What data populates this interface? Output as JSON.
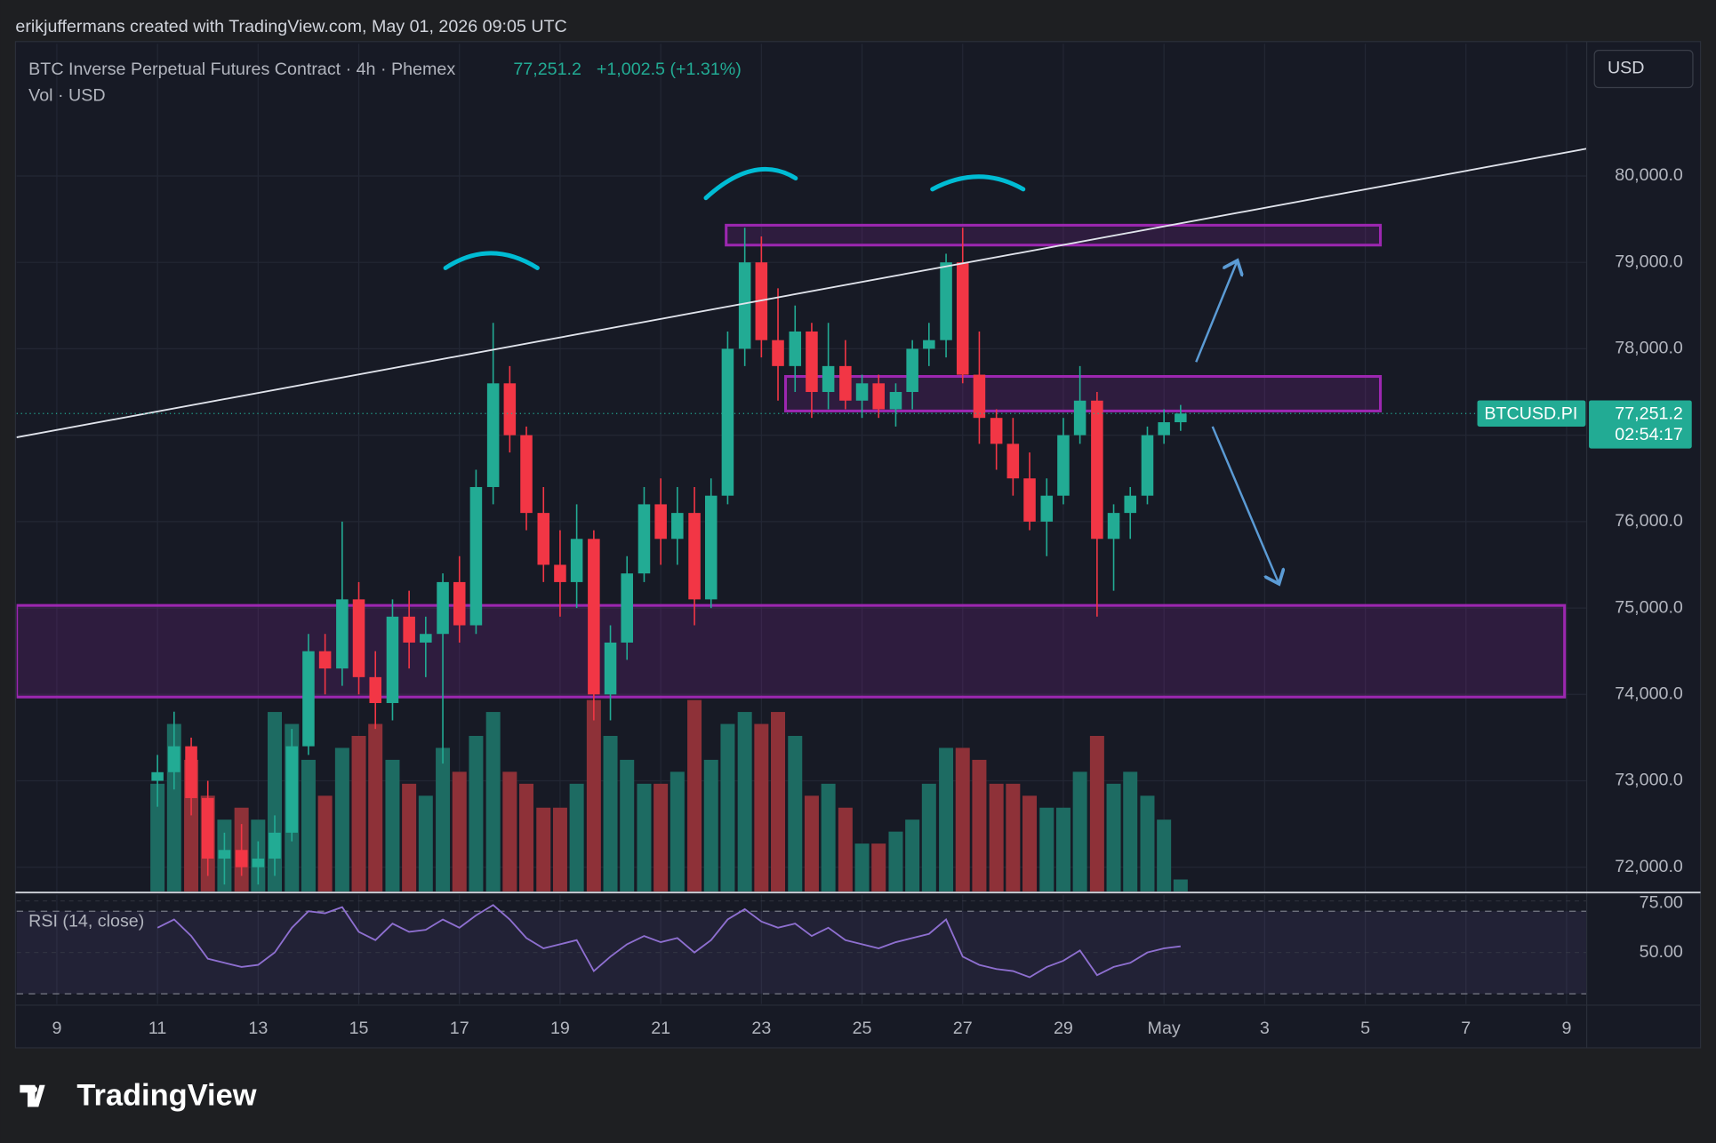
{
  "header": {
    "attribution": "erikjuffermans created with TradingView.com, May 01, 2026 09:05 UTC",
    "symbol": "BTC Inverse Perpetual Futures Contract · 4h · Phemex",
    "change": "+1,002.5 (+1.31%)",
    "volume_label": "Vol · USD",
    "currency": "USD",
    "brand": "TradingView"
  },
  "chart_data": {
    "type": "candlestick",
    "x": [
      11,
      11.33,
      11.67,
      12,
      12.33,
      12.67,
      13,
      13.33,
      13.67,
      14,
      14.33,
      14.67,
      15,
      15.33,
      15.67,
      16,
      16.33,
      16.67,
      17,
      17.33,
      17.67,
      18,
      18.33,
      18.67,
      19,
      19.33,
      19.67,
      20,
      20.33,
      20.67,
      21,
      21.33,
      21.67,
      22,
      22.33,
      22.67,
      23,
      23.33,
      23.67,
      24,
      24.33,
      24.67,
      25,
      25.33,
      25.67,
      26,
      26.33,
      26.67,
      27,
      27.33,
      27.67,
      28,
      28.33,
      28.67,
      29,
      29.33,
      29.67,
      30,
      30.33,
      30.67,
      31,
      31.33
    ],
    "open": [
      73000,
      73100,
      73400,
      72800,
      72100,
      72200,
      72000,
      72100,
      72400,
      73400,
      74500,
      74300,
      75100,
      74200,
      73900,
      74900,
      74600,
      74700,
      75300,
      74800,
      76400,
      77600,
      77000,
      76100,
      75500,
      75300,
      75800,
      74000,
      74600,
      75400,
      76200,
      75800,
      76100,
      75100,
      76300,
      78000,
      79000,
      78100,
      77800,
      78200,
      77500,
      77800,
      77400,
      77600,
      77300,
      77500,
      78000,
      78100,
      79000,
      77700,
      77200,
      76900,
      76500,
      76000,
      76300,
      77000,
      77400,
      75800,
      76100,
      76300,
      77000,
      77150
    ],
    "high": [
      73300,
      73800,
      73500,
      73000,
      72400,
      72500,
      72300,
      72600,
      73600,
      74700,
      74700,
      76000,
      75300,
      74500,
      75100,
      75200,
      74900,
      75400,
      75600,
      76600,
      78300,
      77800,
      77100,
      76400,
      75900,
      76200,
      75900,
      74800,
      75600,
      76400,
      76500,
      76400,
      76400,
      76500,
      78200,
      79400,
      79300,
      78700,
      78500,
      78300,
      78300,
      78100,
      77700,
      77700,
      77600,
      78100,
      78300,
      79100,
      79400,
      78200,
      77300,
      77200,
      76800,
      76500,
      77200,
      77800,
      77500,
      76200,
      76400,
      77100,
      77300,
      77350
    ],
    "low": [
      72700,
      72900,
      72600,
      71900,
      71800,
      71900,
      71800,
      71900,
      72300,
      73300,
      74000,
      74100,
      74000,
      73600,
      73700,
      74300,
      74200,
      73200,
      74600,
      74700,
      76200,
      76800,
      75900,
      75300,
      74900,
      75000,
      73700,
      73700,
      74400,
      75300,
      75500,
      75500,
      74800,
      75000,
      76200,
      77800,
      77900,
      77400,
      77500,
      77200,
      77300,
      77300,
      77200,
      77200,
      77100,
      77300,
      77800,
      77900,
      77600,
      76900,
      76600,
      76300,
      75900,
      75600,
      76200,
      76900,
      74900,
      75200,
      75800,
      76200,
      76900,
      77050
    ],
    "close": [
      73100,
      73400,
      72800,
      72100,
      72200,
      72000,
      72100,
      72400,
      73400,
      74500,
      74300,
      75100,
      74200,
      73900,
      74900,
      74600,
      74700,
      75300,
      74800,
      76400,
      77600,
      77000,
      76100,
      75500,
      75300,
      75800,
      74000,
      74600,
      75400,
      76200,
      75800,
      76100,
      75100,
      76300,
      78000,
      79000,
      78100,
      77800,
      78200,
      77500,
      77800,
      77400,
      77600,
      77300,
      77500,
      78000,
      78100,
      79000,
      77700,
      77200,
      76900,
      76500,
      76000,
      76300,
      77000,
      77400,
      75800,
      76100,
      76300,
      77000,
      77150,
      77251.2
    ],
    "volume": [
      45,
      70,
      55,
      40,
      30,
      35,
      30,
      75,
      70,
      55,
      40,
      60,
      65,
      70,
      55,
      45,
      40,
      60,
      50,
      65,
      75,
      50,
      45,
      35,
      35,
      45,
      80,
      65,
      55,
      45,
      45,
      50,
      80,
      55,
      70,
      75,
      70,
      75,
      65,
      40,
      45,
      35,
      20,
      20,
      25,
      30,
      45,
      60,
      60,
      55,
      45,
      45,
      40,
      35,
      35,
      50,
      65,
      45,
      50,
      40,
      30,
      5
    ],
    "up_color": "#22ab94",
    "down_color": "#f23645",
    "up_volume_color": "#1d6b62",
    "down_volume_color": "#8e3138",
    "xlim": [
      8.2,
      39.4
    ],
    "xticks": [
      9,
      11,
      13,
      15,
      17,
      19,
      21,
      23,
      25,
      27,
      29,
      {
        "value": 31,
        "label": "May"
      },
      {
        "value": 33,
        "label": "3"
      },
      {
        "value": 35,
        "label": "5"
      },
      {
        "value": 37,
        "label": "7"
      },
      {
        "value": 39,
        "label": "9"
      }
    ],
    "ylim": [
      71720,
      81530
    ],
    "yticks": [
      {
        "value": 72000,
        "label": "72,000.0"
      },
      {
        "value": 73000,
        "label": "73,000.0"
      },
      {
        "value": 74000,
        "label": "74,000.0"
      },
      {
        "value": 75000,
        "label": "75,000.0"
      },
      {
        "value": 76000,
        "label": "76,000.0"
      },
      {
        "value": 77000,
        "label": "77,000.0"
      },
      {
        "value": 78000,
        "label": "78,000.0"
      },
      {
        "value": 79000,
        "label": "79,000.0"
      },
      {
        "value": 80000,
        "label": "80,000.0"
      }
    ],
    "grid": true,
    "last": {
      "value": 77251.2,
      "label": "77,251.2"
    },
    "symbol_tag": "BTCUSD.PI",
    "countdown": "02:54:17",
    "zones": [
      {
        "start": 22.3,
        "end": 35.3,
        "from": 79200,
        "to": 79430
      },
      {
        "start": 23.48,
        "end": 35.3,
        "from": 77280,
        "to": 77680
      },
      {
        "start": 8.2,
        "end": 38.96,
        "from": 73970,
        "to": 75030
      }
    ],
    "zone_color": "#9c27b0",
    "trendline": {
      "x": [
        8.2,
        39.4
      ],
      "y": [
        76975,
        80316
      ],
      "color": "#e0e3eb"
    },
    "rsi": {
      "name": "RSI (14, close)",
      "color": "#8e6fd0",
      "values": [
        62,
        66,
        58,
        47,
        45,
        43,
        44,
        50,
        62,
        70,
        69,
        72,
        60,
        56,
        64,
        60,
        61,
        66,
        62,
        68,
        73,
        66,
        57,
        52,
        54,
        56,
        41,
        48,
        54,
        58,
        55,
        57,
        50,
        56,
        66,
        71,
        65,
        62,
        64,
        58,
        62,
        56,
        54,
        52,
        55,
        57,
        59,
        66,
        48,
        44,
        42,
        41,
        38,
        43,
        46,
        51,
        39,
        43,
        45,
        50,
        52,
        53
      ],
      "ylim": [
        25,
        78
      ],
      "yticks": [
        {
          "value": 75,
          "label": "75.00"
        },
        {
          "value": 50,
          "label": "50.00"
        }
      ],
      "bands": [
        70,
        30
      ]
    }
  }
}
